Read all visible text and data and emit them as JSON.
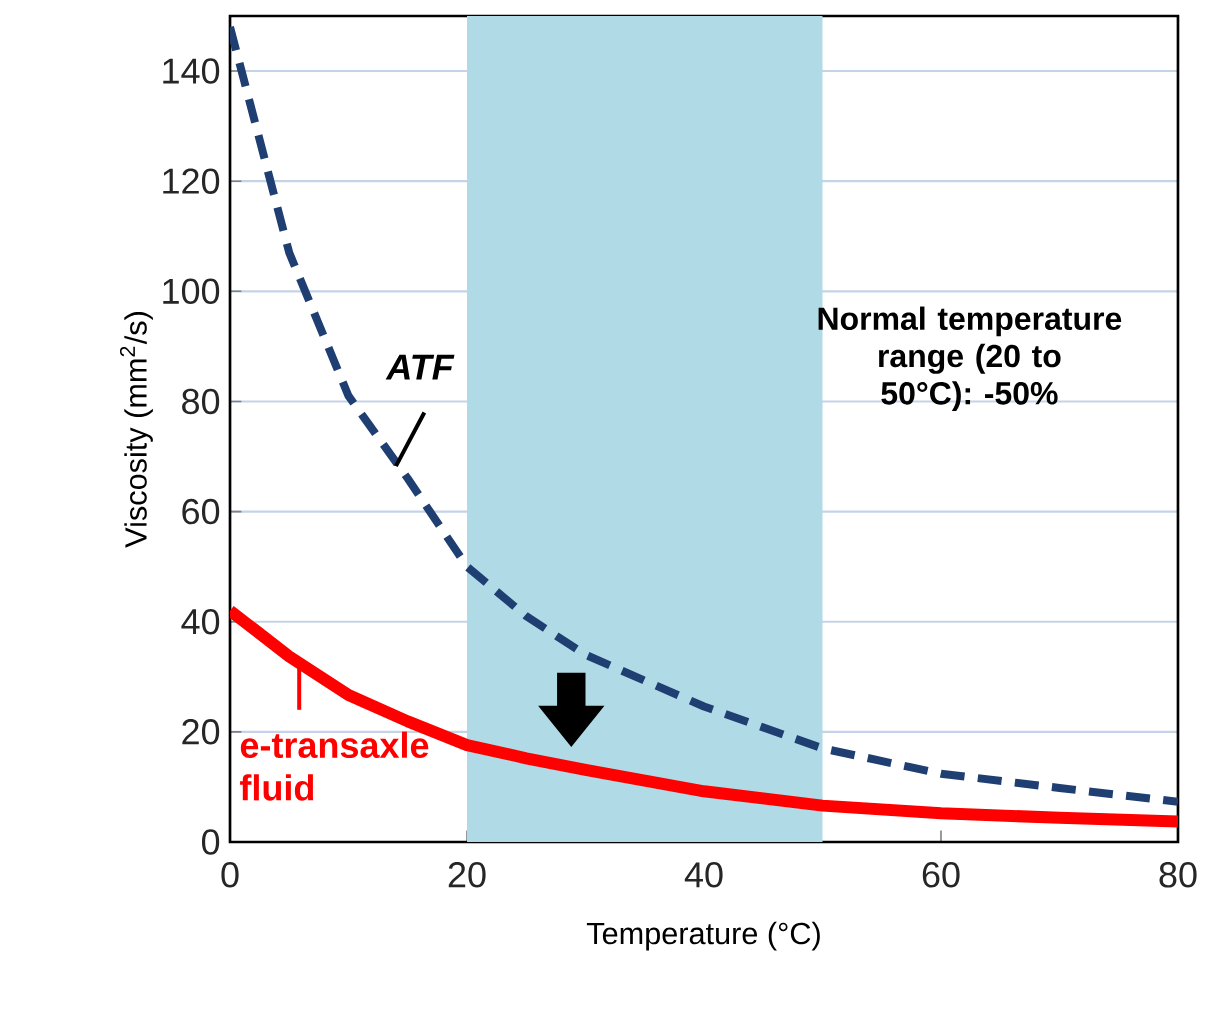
{
  "chart_data": {
    "type": "line",
    "xlabel": "Temperature (°C)",
    "ylabel": "Viscosity (mm$^{2}$/s)",
    "x": [
      0,
      5,
      10,
      15,
      20,
      25,
      30,
      40,
      50,
      60,
      70,
      80
    ],
    "series": [
      {
        "name": "ATF",
        "color": "#1f3f73",
        "line_style": "dashed",
        "values": [
          148,
          107,
          81,
          66,
          50,
          41,
          34,
          24.6,
          17,
          12.4,
          9.8,
          7.3
        ]
      },
      {
        "name": "e-transaxle fluid",
        "color": "#ff0000",
        "line_style": "solid",
        "values": [
          42,
          33.7,
          26.7,
          21.9,
          17.6,
          15.2,
          13.1,
          9.2,
          6.6,
          5.2,
          4.4,
          3.7
        ]
      }
    ],
    "xlim": [
      0,
      80
    ],
    "ylim": [
      0,
      150
    ],
    "xticks": [
      0,
      20,
      40,
      60,
      80
    ],
    "yticks": [
      0,
      20,
      40,
      60,
      80,
      100,
      120,
      140
    ],
    "bands": [
      {
        "axis": "x",
        "from": 20,
        "to": 50,
        "color": "#b0dbe6"
      }
    ],
    "annotations": [
      "Normal temperature range (20 to 50°C): -50%"
    ],
    "grid": "y",
    "marker": "none"
  }
}
